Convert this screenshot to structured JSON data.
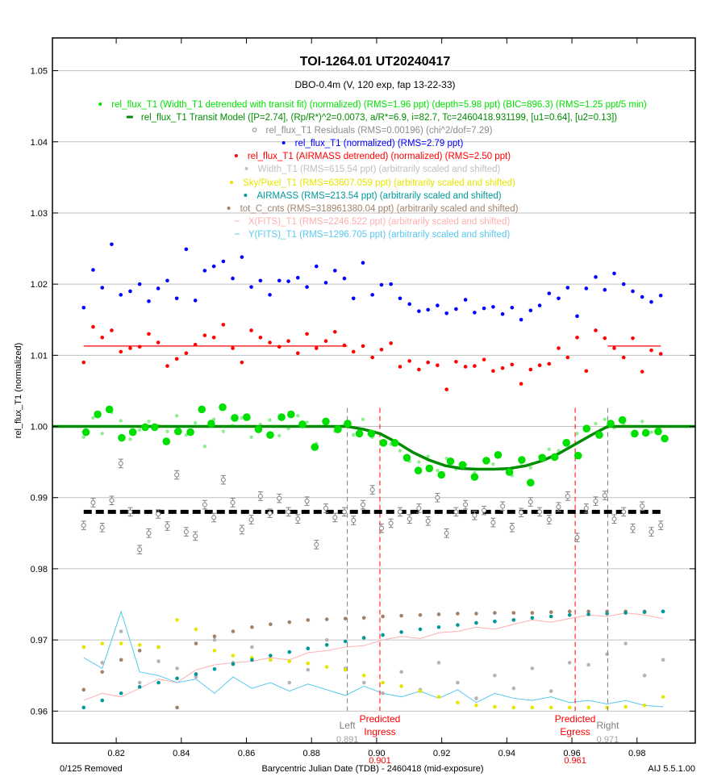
{
  "chart_data": {
    "type": "scatter",
    "title": "TOI-1264.01  UT20240417",
    "subtitle": "DBO-0.4m (V, 120 exp, fap 13-22-33)",
    "xlabel": "Barycentric Julian Date (TDB) - 2460418 (mid-exposure)",
    "ylabel": "rel_flux_T1 (normalized)",
    "xlim": [
      0.8004,
      0.9979
    ],
    "ylim": [
      0.9555,
      1.0546
    ],
    "xticks": [
      "0.82",
      "0.84",
      "0.86",
      "0.88",
      "0.90",
      "0.92",
      "0.94",
      "0.96",
      "0.98"
    ],
    "yticks": [
      "0.96",
      "0.97",
      "0.98",
      "0.99",
      "1.00",
      "1.01",
      "1.02",
      "1.03",
      "1.04",
      "1.05"
    ],
    "grid": "horizontal",
    "legend_placement": "top-center",
    "footer_left": "0/125 Removed",
    "footer_right": "AIJ 5.5.1.00",
    "legend": [
      {
        "text": "rel_flux_T1 (Width_T1 detrended with transit fit) (normalized) (RMS=1.96 ppt) (depth=5.98 ppt) (BIC=896.3) (RMS=1.25 ppt/5 min)",
        "color": "#00e000",
        "marker": "dot"
      },
      {
        "text": "rel_flux_T1 Transit Model ([P=2.74], (Rp/R*)^2=0.0073, a/R*=6.9, i=82.7, Tc=2460418.931199, [u1=0.64], [u2=0.13])",
        "color": "#008c00",
        "marker": "bar"
      },
      {
        "text": "rel_flux_T1 Residuals (RMS=0.00196) (chi^2/dof=7.29)",
        "color": "#8c8c8c",
        "marker": "circle"
      },
      {
        "text": "rel_flux_T1 (normalized) (RMS=2.79 ppt)",
        "color": "#0000ff",
        "marker": "dot"
      },
      {
        "text": "rel_flux_T1 (AIRMASS detrended) (normalized) (RMS=2.50 ppt)",
        "color": "#ff0000",
        "marker": "dot"
      },
      {
        "text": "Width_T1 (RMS=615.54 ppt) (arbitrarily scaled and shifted)",
        "color": "#c0c0c0",
        "marker": "dot"
      },
      {
        "text": "Sky/Pixel_T1 (RMS=63607.059 ppt) (arbitrarily scaled and shifted)",
        "color": "#e6e600",
        "marker": "dot"
      },
      {
        "text": "AIRMASS (RMS=213.54 ppt) (arbitrarily scaled and shifted)",
        "color": "#00999a",
        "marker": "dot"
      },
      {
        "text": "tot_C_cnts (RMS=318961380.04 ppt) (arbitrarily scaled and shifted)",
        "color": "#a0826a",
        "marker": "dot"
      },
      {
        "text": "X(FITS)_T1 (RMS=2246.522 ppt) (arbitrarily scaled and shifted)",
        "color": "#ffafaf",
        "marker": "dash"
      },
      {
        "text": "Y(FITS)_T1 (RMS=1296.705 ppt) (arbitrarily scaled and shifted)",
        "color": "#58c8f0",
        "marker": "dash"
      }
    ],
    "markers": [
      {
        "label1": "Left",
        "label2": "",
        "value": "0.891",
        "x": 0.891,
        "color": "#808080"
      },
      {
        "label1": "Predicted",
        "label2": "Ingress",
        "value": "0.901",
        "x": 0.901,
        "color": "#ff0000"
      },
      {
        "label1": "Predicted",
        "label2": "Egress",
        "value": "0.961",
        "x": 0.961,
        "color": "#ff0000"
      },
      {
        "label1": "Right",
        "label2": "",
        "value": "0.971",
        "x": 0.971,
        "color": "#808080"
      }
    ],
    "raw_x": [
      0.81,
      0.8129,
      0.8157,
      0.8186,
      0.8214,
      0.8243,
      0.8272,
      0.83,
      0.8329,
      0.8357,
      0.8386,
      0.8415,
      0.8443,
      0.8472,
      0.85,
      0.8529,
      0.8558,
      0.8586,
      0.8615,
      0.8643,
      0.8672,
      0.8701,
      0.8729,
      0.8758,
      0.8786,
      0.8815,
      0.8844,
      0.8872,
      0.8901,
      0.8929,
      0.8958,
      0.8987,
      0.9015,
      0.9044,
      0.9072,
      0.9101,
      0.913,
      0.9158,
      0.9187,
      0.9215,
      0.9244,
      0.9273,
      0.9301,
      0.933,
      0.9358,
      0.9387,
      0.9416,
      0.9444,
      0.9473,
      0.9501,
      0.953,
      0.9559,
      0.9587,
      0.9616,
      0.9644,
      0.9673,
      0.9701,
      0.973,
      0.9759,
      0.9787,
      0.9816,
      0.9844,
      0.9873
    ],
    "series": {
      "rel_flux_normalized": [
        1.0167,
        1.022,
        1.0195,
        1.0256,
        1.0185,
        1.019,
        1.02,
        1.0176,
        1.0194,
        1.0205,
        1.018,
        1.0249,
        1.0177,
        1.0219,
        1.0225,
        1.0232,
        1.0208,
        1.0238,
        1.0196,
        1.0205,
        1.0185,
        1.0205,
        1.0204,
        1.0209,
        1.0196,
        1.0225,
        1.0202,
        1.0219,
        1.0208,
        1.018,
        1.023,
        1.0185,
        1.0199,
        1.02,
        1.018,
        1.0172,
        1.0162,
        1.0164,
        1.017,
        1.0159,
        1.0165,
        1.0178,
        1.016,
        1.0166,
        1.0168,
        1.0158,
        1.0167,
        1.015,
        1.0163,
        1.017,
        1.0187,
        1.018,
        1.0195,
        1.0155,
        1.0194,
        1.021,
        1.0192,
        1.0215,
        1.02,
        1.019,
        1.0182,
        1.0175,
        1.0184
      ],
      "rel_flux_airmass_detrended": [
        1.009,
        1.014,
        1.0125,
        1.0135,
        1.0105,
        1.011,
        1.0112,
        1.013,
        1.0118,
        1.0085,
        1.0095,
        1.0103,
        1.0115,
        1.0128,
        1.0125,
        1.0143,
        1.011,
        1.009,
        1.0135,
        1.0125,
        1.0118,
        1.0112,
        1.012,
        1.0103,
        1.013,
        1.011,
        1.012,
        1.0133,
        1.0114,
        1.0105,
        1.0113,
        1.0097,
        1.0108,
        1.0117,
        1.0084,
        1.0092,
        1.008,
        1.009,
        1.0086,
        1.0052,
        1.0091,
        1.0084,
        1.0085,
        1.0094,
        1.0078,
        1.0082,
        1.0087,
        1.006,
        1.008,
        1.0086,
        1.0088,
        1.011,
        1.0097,
        1.0125,
        1.0078,
        1.0135,
        1.0124,
        1.011,
        1.0097,
        1.0124,
        1.0077,
        1.0107,
        1.0102
      ],
      "airmass_fit_level": 1.0113,
      "rel_flux_width_detrended": [
        0.9985,
        1.0012,
        0.999,
        1.002,
        1.0008,
        0.9982,
        0.9995,
        1.0007,
        1.0001,
        0.9993,
        1.0015,
        0.9988,
        1.0005,
        0.9972,
        1.001,
        0.9993,
        1.0001,
        1.0012,
        0.9985,
        1.0003,
        1.0009,
        0.9987,
        0.9997,
        1.0015,
        1.0006,
        0.9976,
        1.001,
        0.9993,
        1.0002,
        0.9988,
        1.001,
        0.9985,
        0.9989,
        0.9975,
        0.9966,
        0.9951,
        0.995,
        0.9958,
        0.9938,
        0.9955,
        0.994,
        0.9946,
        0.9935,
        0.9952,
        0.9947,
        0.994,
        0.9931,
        0.9949,
        0.9942,
        0.9958,
        0.9968,
        0.9966,
        0.998,
        0.999,
        0.9994,
        1.0004,
        1.001,
        0.9998,
        1.0003,
        0.9987,
        1.0007,
        0.9992,
        1.0
      ],
      "residuals": [
        0.9861,
        0.9893,
        0.9858,
        0.9896,
        0.9948,
        0.988,
        0.9827,
        0.985,
        0.9877,
        0.986,
        0.9932,
        0.9852,
        0.9846,
        0.989,
        0.9872,
        0.9925,
        0.9893,
        0.9855,
        0.9869,
        0.9902,
        0.9878,
        0.9899,
        0.988,
        0.987,
        0.9895,
        0.9834,
        0.9885,
        0.9872,
        0.988,
        0.9868,
        0.989,
        0.9911,
        0.9857,
        0.9864,
        0.988,
        0.987,
        0.9885,
        0.9867,
        0.99,
        0.985,
        0.988,
        0.989,
        0.9875,
        0.9882,
        0.9865,
        0.9888,
        0.9858,
        0.9879,
        0.9894,
        0.988,
        0.9869,
        0.9887,
        0.9902,
        0.9844,
        0.9885,
        0.9895,
        0.9903,
        0.987,
        0.988,
        0.9857,
        0.9888,
        0.9852,
        0.9861
      ],
      "residual_error": 0.0006,
      "residual_baseline": 0.988
    },
    "binned": {
      "x": [
        0.8107,
        0.8143,
        0.8179,
        0.8217,
        0.8251,
        0.8289,
        0.8318,
        0.8354,
        0.839,
        0.8428,
        0.8463,
        0.8492,
        0.8527,
        0.8564,
        0.8601,
        0.8637,
        0.8673,
        0.8708,
        0.8737,
        0.8772,
        0.881,
        0.8844,
        0.8881,
        0.8911,
        0.8947,
        0.8984,
        0.9021,
        0.9056,
        0.9093,
        0.9128,
        0.9162,
        0.9199,
        0.9227,
        0.9264,
        0.9301,
        0.9337,
        0.9373,
        0.9408,
        0.9446,
        0.9473,
        0.9509,
        0.9547,
        0.9583,
        0.9619,
        0.9645,
        0.9684,
        0.9719,
        0.9755,
        0.9793,
        0.9827,
        0.9865,
        0.9885
      ],
      "y": [
        0.9992,
        1.0017,
        1.0024,
        0.9984,
        0.9992,
        0.9999,
        0.9999,
        0.9979,
        0.9993,
        0.9992,
        1.0024,
        1.0004,
        1.0027,
        1.0012,
        1.0013,
        0.9996,
        0.9988,
        1.0013,
        1.0017,
        1.0003,
        0.9971,
        1.0007,
        0.9996,
        1.0004,
        0.999,
        0.999,
        0.9977,
        0.9977,
        0.9956,
        0.9938,
        0.9941,
        0.9932,
        0.9951,
        0.9946,
        0.9929,
        0.9952,
        0.996,
        0.9936,
        0.9953,
        0.9921,
        0.9956,
        0.9957,
        0.9977,
        0.9959,
        0.9997,
        0.9988,
        1.0004,
        1.0009,
        0.999,
        0.9991,
        0.9993,
        0.9983
      ]
    },
    "transit_model": {
      "x": [
        0.8004,
        0.891,
        0.896,
        0.901,
        0.906,
        0.911,
        0.916,
        0.921,
        0.926,
        0.931,
        0.936,
        0.941,
        0.946,
        0.951,
        0.956,
        0.961,
        0.966,
        0.971,
        0.9979
      ],
      "y": [
        1.0,
        1.0,
        0.9996,
        0.999,
        0.9978,
        0.9964,
        0.9953,
        0.9945,
        0.9941,
        0.994,
        0.994,
        0.9941,
        0.9945,
        0.9952,
        0.9962,
        0.9975,
        0.9988,
        1.0,
        1.0
      ]
    },
    "aux_x": [
      0.81,
      0.8157,
      0.8215,
      0.8272,
      0.833,
      0.8387,
      0.8445,
      0.8502,
      0.8559,
      0.8617,
      0.8674,
      0.8732,
      0.8789,
      0.8847,
      0.8904,
      0.8961,
      0.9019,
      0.9076,
      0.9134,
      0.9191,
      0.9249,
      0.9306,
      0.9363,
      0.9421,
      0.9478,
      0.9536,
      0.9593,
      0.9651,
      0.9708,
      0.9765,
      0.9823,
      0.988
    ],
    "aux": {
      "width": [
        0.969,
        0.9668,
        0.9712,
        0.964,
        0.967,
        0.966,
        0.9648,
        0.97,
        0.9668,
        0.969,
        0.9672,
        0.964,
        0.9658,
        0.97,
        0.966,
        0.964,
        0.9625,
        0.9655,
        0.963,
        0.9668,
        0.964,
        0.9618,
        0.965,
        0.9632,
        0.966,
        0.9628,
        0.9668,
        0.9665,
        0.968,
        0.9695,
        0.965,
        0.9672
      ],
      "sky": [
        0.969,
        0.9695,
        0.9695,
        0.9693,
        0.969,
        0.9728,
        0.9715,
        0.9685,
        0.9678,
        0.9675,
        0.9672,
        0.967,
        0.9667,
        0.9662,
        0.9658,
        0.965,
        0.964,
        0.9635,
        0.9628,
        0.962,
        0.9612,
        0.9608,
        0.9606,
        0.9605,
        0.9605,
        0.9605,
        0.9605,
        0.9605,
        0.9605,
        0.9606,
        0.9608,
        0.962
      ],
      "airmass": [
        0.9605,
        0.9615,
        0.9625,
        0.9634,
        0.964,
        0.9646,
        0.9652,
        0.9659,
        0.9666,
        0.9672,
        0.9678,
        0.9683,
        0.9688,
        0.9693,
        0.9698,
        0.9703,
        0.9707,
        0.9711,
        0.9715,
        0.9718,
        0.9721,
        0.9724,
        0.9726,
        0.9728,
        0.9731,
        0.9733,
        0.9735,
        0.9736,
        0.9737,
        0.9738,
        0.9739,
        0.974
      ],
      "tot_c_cnts": [
        0.963,
        0.9655,
        0.9672,
        0.9685,
        0.969,
        0.9605,
        0.9695,
        0.9705,
        0.9712,
        0.9718,
        0.9722,
        0.9725,
        0.9728,
        0.9729,
        0.973,
        0.9731,
        0.9733,
        0.9734,
        0.9735,
        0.9736,
        0.9737,
        0.9737,
        0.9738,
        0.9738,
        0.9738,
        0.9739,
        0.974,
        0.974,
        0.974,
        0.974,
        0.974,
        0.974
      ],
      "x_fits": [
        0.9615,
        0.9625,
        0.962,
        0.9632,
        0.9645,
        0.964,
        0.9658,
        0.9665,
        0.9668,
        0.967,
        0.9675,
        0.9672,
        0.9682,
        0.9685,
        0.969,
        0.9692,
        0.97,
        0.9705,
        0.9702,
        0.971,
        0.9712,
        0.9718,
        0.9715,
        0.9722,
        0.9728,
        0.9725,
        0.973,
        0.9735,
        0.9733,
        0.9738,
        0.9735,
        0.973
      ],
      "y_fits": [
        0.9675,
        0.966,
        0.974,
        0.9655,
        0.965,
        0.964,
        0.9645,
        0.9625,
        0.9648,
        0.9632,
        0.964,
        0.9628,
        0.9638,
        0.963,
        0.9622,
        0.9635,
        0.9625,
        0.962,
        0.9628,
        0.9618,
        0.963,
        0.9612,
        0.9625,
        0.9618,
        0.9615,
        0.962,
        0.9612,
        0.9615,
        0.961,
        0.9615,
        0.9608,
        0.9606
      ]
    },
    "colors": {
      "binned": "#00e000",
      "raw_detrended": "#90ee90",
      "model": "#008c00",
      "residual": "#808080",
      "normalized": "#0000ff",
      "airmass_detrended": "#ff0000",
      "width": "#b4b4b4",
      "sky": "#e6e600",
      "airmass": "#00999a",
      "tot_c_cnts": "#a0826a",
      "x_fits": "#ffafaf",
      "y_fits": "#58c8f0",
      "grid": "#c0c0c0"
    }
  }
}
